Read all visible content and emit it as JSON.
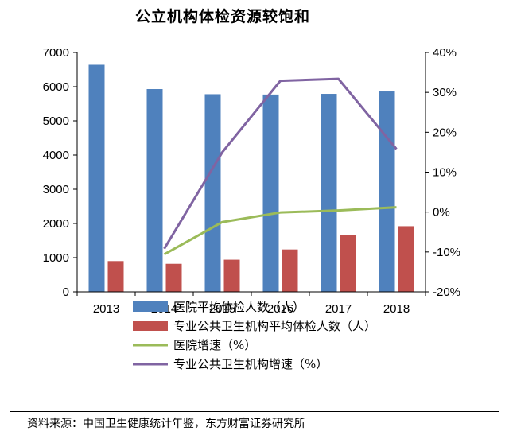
{
  "title": "公立机构体检资源较饱和",
  "source": "资料来源：中国卫生健康统计年鉴，东方财富证券研究所",
  "chart_data": {
    "type": "bar",
    "categories": [
      "2013",
      "2014",
      "2015",
      "2016",
      "2017",
      "2018"
    ],
    "left_axis": {
      "ylim": [
        0,
        7000
      ],
      "ticks": [
        "0",
        "1000",
        "2000",
        "3000",
        "4000",
        "5000",
        "6000",
        "7000"
      ]
    },
    "right_axis": {
      "ylim": [
        -20,
        40
      ],
      "ticks": [
        "-20%",
        "-10%",
        "0%",
        "10%",
        "20%",
        "30%",
        "40%"
      ]
    },
    "series": [
      {
        "name": "医院平均体检人数（人）",
        "type": "bar",
        "axis": "left",
        "color": "#4F81BD",
        "values": [
          6640,
          5930,
          5780,
          5770,
          5790,
          5860
        ]
      },
      {
        "name": "专业公共卫生机构平均体检人数（人）",
        "type": "bar",
        "axis": "left",
        "color": "#C0504D",
        "values": [
          900,
          820,
          940,
          1240,
          1660,
          1920
        ]
      },
      {
        "name": "医院增速（%）",
        "type": "line",
        "axis": "right",
        "color": "#9BBB59",
        "values": [
          null,
          -10.6,
          -2.5,
          -0.1,
          0.4,
          1.2
        ]
      },
      {
        "name": "专业公共卫生机构增速（%）",
        "type": "line",
        "axis": "right",
        "color": "#8064A2",
        "values": [
          null,
          -9.2,
          15.0,
          32.9,
          33.4,
          15.8
        ]
      }
    ],
    "legend": "bottom"
  }
}
